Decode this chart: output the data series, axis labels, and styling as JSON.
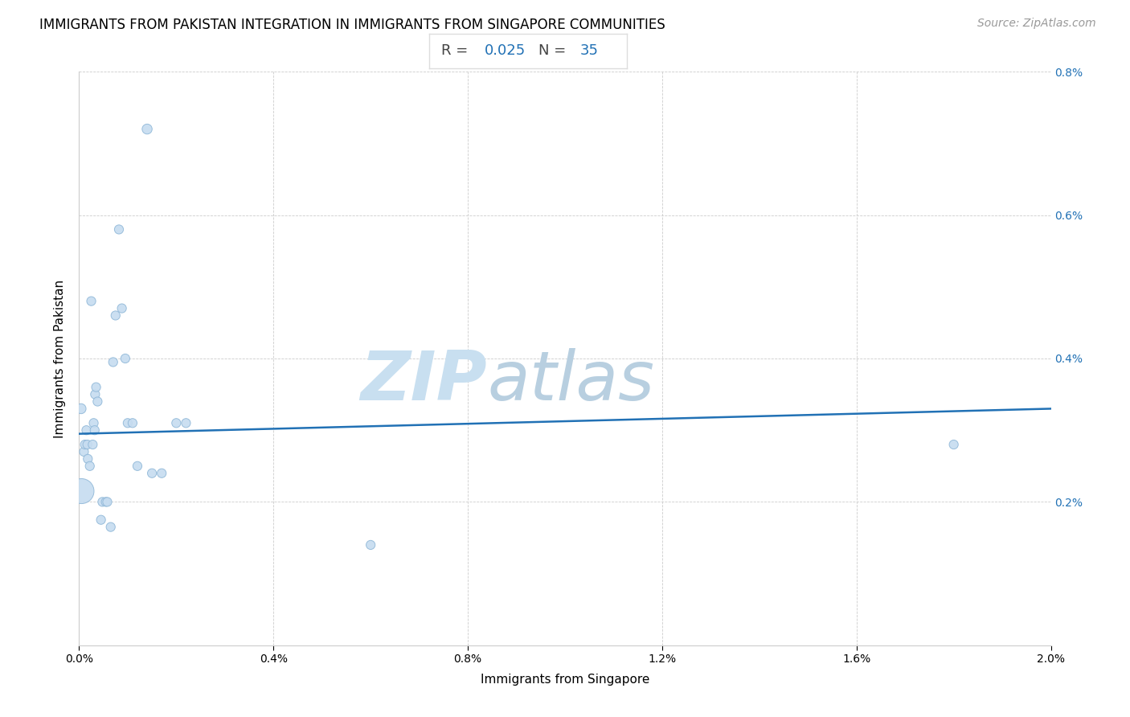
{
  "title": "IMMIGRANTS FROM PAKISTAN INTEGRATION IN IMMIGRANTS FROM SINGAPORE COMMUNITIES",
  "source": "Source: ZipAtlas.com",
  "xlabel": "Immigrants from Singapore",
  "ylabel": "Immigrants from Pakistan",
  "R_val": "0.025",
  "N_val": "35",
  "xlim": [
    0.0,
    0.02
  ],
  "ylim": [
    0.0,
    0.008
  ],
  "xtick_vals": [
    0.0,
    0.004,
    0.008,
    0.012,
    0.016,
    0.02
  ],
  "ytick_vals": [
    0.0,
    0.002,
    0.004,
    0.006,
    0.008
  ],
  "ytick_labels_right": [
    "",
    "0.2%",
    "0.4%",
    "0.6%",
    "0.8%"
  ],
  "xtick_labels": [
    "0.0%",
    "0.4%",
    "0.8%",
    "1.2%",
    "1.6%",
    "2.0%"
  ],
  "points": [
    [
      4e-05,
      0.0033,
      80
    ],
    [
      5e-05,
      0.00215,
      500
    ],
    [
      0.0001,
      0.0027,
      65
    ],
    [
      0.00012,
      0.0028,
      65
    ],
    [
      0.00015,
      0.003,
      65
    ],
    [
      0.00017,
      0.0028,
      65
    ],
    [
      0.00018,
      0.0026,
      65
    ],
    [
      0.00022,
      0.0025,
      65
    ],
    [
      0.00025,
      0.0048,
      65
    ],
    [
      0.00028,
      0.0028,
      65
    ],
    [
      0.0003,
      0.0031,
      65
    ],
    [
      0.00032,
      0.003,
      65
    ],
    [
      0.00033,
      0.0035,
      65
    ],
    [
      0.00035,
      0.0036,
      65
    ],
    [
      0.00038,
      0.0034,
      65
    ],
    [
      0.00045,
      0.00175,
      65
    ],
    [
      0.00048,
      0.002,
      65
    ],
    [
      0.00055,
      0.002,
      65
    ],
    [
      0.00058,
      0.002,
      65
    ],
    [
      0.00065,
      0.00165,
      65
    ],
    [
      0.0007,
      0.00395,
      65
    ],
    [
      0.00075,
      0.0046,
      65
    ],
    [
      0.00082,
      0.0058,
      65
    ],
    [
      0.00088,
      0.0047,
      65
    ],
    [
      0.00095,
      0.004,
      65
    ],
    [
      0.001,
      0.0031,
      65
    ],
    [
      0.0011,
      0.0031,
      65
    ],
    [
      0.0012,
      0.0025,
      65
    ],
    [
      0.0014,
      0.0072,
      80
    ],
    [
      0.0015,
      0.0024,
      65
    ],
    [
      0.0017,
      0.0024,
      65
    ],
    [
      0.002,
      0.0031,
      65
    ],
    [
      0.0022,
      0.0031,
      65
    ],
    [
      0.006,
      0.0014,
      65
    ],
    [
      0.018,
      0.0028,
      65
    ]
  ],
  "dot_color": "#c6dcf0",
  "dot_edge_color": "#90b8d8",
  "line_color": "#2171b5",
  "watermark_zip": "ZIP",
  "watermark_atlas": "atlas",
  "watermark_color": "#ddeef8",
  "title_fontsize": 12,
  "label_fontsize": 11,
  "tick_fontsize": 10,
  "source_fontsize": 10,
  "background_color": "#ffffff",
  "grid_color": "#cccccc",
  "trend_start_y": 0.00295,
  "trend_end_y": 0.0033
}
